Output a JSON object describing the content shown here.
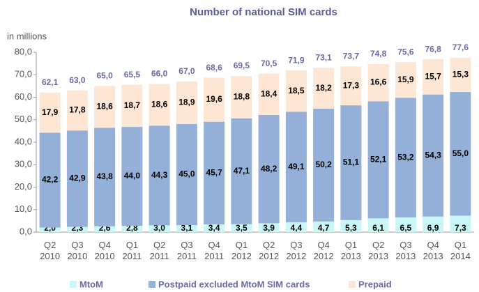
{
  "chart_data": {
    "type": "stacked_bar",
    "title": "Number of national SIM cards",
    "y_axis_label": "in millions",
    "categories": [
      "Q2 2010",
      "Q3 2010",
      "Q4 2010",
      "Q1 2011",
      "Q2 2011",
      "Q3 2011",
      "Q4 2011",
      "Q1 2012",
      "Q2 2012",
      "Q3 2012",
      "Q4 2012",
      "Q1 2013",
      "Q2 2013",
      "Q3 2013",
      "Q4 2013",
      "Q1 2014"
    ],
    "series": [
      {
        "name": "MtoM",
        "color": "#c9f7f7",
        "label_color": "#000000",
        "values": [
          2.0,
          2.3,
          2.6,
          2.8,
          3.0,
          3.1,
          3.4,
          3.5,
          3.9,
          4.4,
          4.7,
          5.3,
          6.1,
          6.5,
          6.9,
          7.3
        ],
        "value_labels": [
          "2,0",
          "2,3",
          "2,6",
          "2,8",
          "3,0",
          "3,1",
          "3,4",
          "3,5",
          "3,9",
          "4,4",
          "4,7",
          "5,3",
          "6,1",
          "6,5",
          "6,9",
          "7,3"
        ]
      },
      {
        "name": "Postpaid excluded MtoM SIM cards",
        "color": "#94afd8",
        "label_color": "#000000",
        "values": [
          42.2,
          42.9,
          43.8,
          44.0,
          44.3,
          45.0,
          45.7,
          47.1,
          48.2,
          49.1,
          50.2,
          51.1,
          52.1,
          53.2,
          54.3,
          55.0
        ],
        "value_labels": [
          "42,2",
          "42,9",
          "43,8",
          "44,0",
          "44,3",
          "45,0",
          "45,7",
          "47,1",
          "48,2",
          "49,1",
          "50,2",
          "51,1",
          "52,1",
          "53,2",
          "54,3",
          "55,0"
        ]
      },
      {
        "name": "Prepaid",
        "color": "#fde6d4",
        "label_color": "#000000",
        "values": [
          17.9,
          17.8,
          18.6,
          18.7,
          18.6,
          18.9,
          19.6,
          18.8,
          18.4,
          18.5,
          18.2,
          17.3,
          16.6,
          15.9,
          15.7,
          15.3
        ],
        "value_labels": [
          "17,9",
          "17,8",
          "18,6",
          "18,7",
          "18,6",
          "18,9",
          "19,6",
          "18,8",
          "18,4",
          "18,5",
          "18,2",
          "17,3",
          "16,6",
          "15,9",
          "15,7",
          "15,3"
        ]
      }
    ],
    "totals": {
      "color": "#6a6aa6",
      "values": [
        62.1,
        63.0,
        65.0,
        65.5,
        66.0,
        67.0,
        68.6,
        69.5,
        70.5,
        71.9,
        73.1,
        73.7,
        74.8,
        75.6,
        76.8,
        77.6
      ],
      "value_labels": [
        "62,1",
        "63,0",
        "65,0",
        "65,5",
        "66,0",
        "67,0",
        "68,6",
        "69,5",
        "70,5",
        "71,9",
        "73,1",
        "73,7",
        "74,8",
        "75,6",
        "76,8",
        "77,6"
      ]
    },
    "ylim": [
      0,
      80
    ],
    "yticks": [
      {
        "value": 0,
        "label": "0,0"
      },
      {
        "value": 10,
        "label": "10,0"
      },
      {
        "value": 20,
        "label": "20,0"
      },
      {
        "value": 30,
        "label": "30,0"
      },
      {
        "value": 40,
        "label": "40,0"
      },
      {
        "value": 50,
        "label": "50,0"
      },
      {
        "value": 60,
        "label": "60,0"
      },
      {
        "value": 70,
        "label": "70,0"
      },
      {
        "value": 80,
        "label": "80,0"
      }
    ],
    "legend": "bottom"
  }
}
